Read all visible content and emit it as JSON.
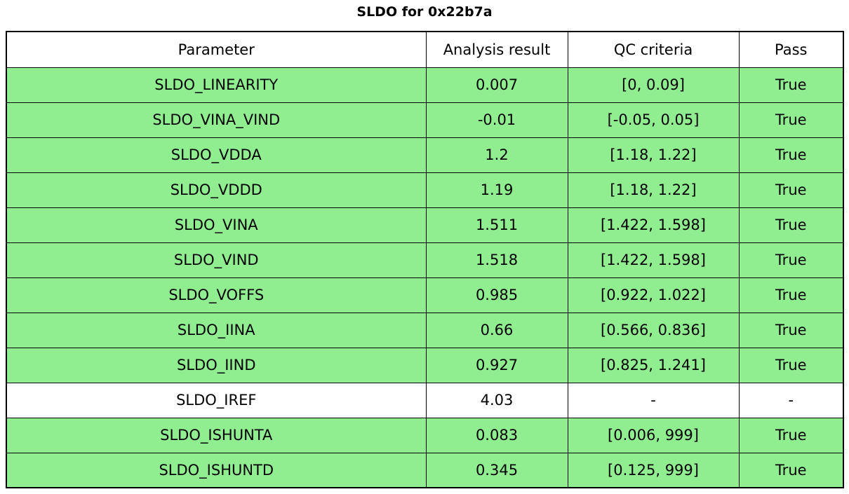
{
  "title": "SLDO for 0x22b7a",
  "colors": {
    "pass_row": "#90ee90",
    "neutral_row": "#ffffff",
    "border": "#000000",
    "text": "#000000",
    "background": "#ffffff"
  },
  "chart_data": {
    "type": "table",
    "title": "SLDO for 0x22b7a",
    "columns": [
      "Parameter",
      "Analysis result",
      "QC criteria",
      "Pass"
    ],
    "rows": [
      [
        "SLDO_LINEARITY",
        "0.007",
        "[0, 0.09]",
        "True"
      ],
      [
        "SLDO_VINA_VIND",
        "-0.01",
        "[-0.05, 0.05]",
        "True"
      ],
      [
        "SLDO_VDDA",
        "1.2",
        "[1.18, 1.22]",
        "True"
      ],
      [
        "SLDO_VDDD",
        "1.19",
        "[1.18, 1.22]",
        "True"
      ],
      [
        "SLDO_VINA",
        "1.511",
        "[1.422, 1.598]",
        "True"
      ],
      [
        "SLDO_VIND",
        "1.518",
        "[1.422, 1.598]",
        "True"
      ],
      [
        "SLDO_VOFFS",
        "0.985",
        "[0.922, 1.022]",
        "True"
      ],
      [
        "SLDO_IINA",
        "0.66",
        "[0.566, 0.836]",
        "True"
      ],
      [
        "SLDO_IIND",
        "0.927",
        "[0.825, 1.241]",
        "True"
      ],
      [
        "SLDO_IREF",
        "4.03",
        "-",
        "-"
      ],
      [
        "SLDO_ISHUNTA",
        "0.083",
        "[0.006, 999]",
        "True"
      ],
      [
        "SLDO_ISHUNTD",
        "0.345",
        "[0.125, 999]",
        "True"
      ]
    ],
    "row_highlighted": [
      true,
      true,
      true,
      true,
      true,
      true,
      true,
      true,
      true,
      false,
      true,
      true
    ]
  }
}
